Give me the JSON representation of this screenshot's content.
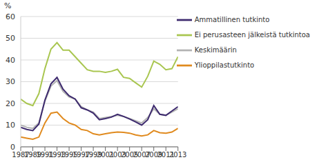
{
  "chart_data": {
    "type": "line",
    "y_label": "%",
    "legend": "top-right",
    "grid": true,
    "x": [
      1987,
      1988,
      1989,
      1990,
      1991,
      1992,
      1993,
      1994,
      1995,
      1996,
      1997,
      1998,
      1999,
      2000,
      2001,
      2002,
      2003,
      2004,
      2005,
      2006,
      2007,
      2008,
      2009,
      2010,
      2011,
      2012,
      2013
    ],
    "xlim": [
      1987,
      2013
    ],
    "xticks": [
      1987,
      1989,
      1991,
      1993,
      1995,
      1997,
      1999,
      2001,
      2003,
      2005,
      2007,
      2009,
      2011,
      2013
    ],
    "ylim": [
      0,
      60
    ],
    "yticks": [
      0,
      10,
      20,
      30,
      40,
      50,
      60
    ],
    "series": [
      {
        "name": "Ei perusasteen jälkeistä tutkintoa",
        "color": "#a9c650",
        "values": [
          22,
          20,
          19,
          24.5,
          36,
          45,
          48,
          44.5,
          44.5,
          41.5,
          38.5,
          35.5,
          34.8,
          34.8,
          34.3,
          34.8,
          35.7,
          32,
          31.5,
          29.5,
          27.5,
          32.5,
          39.5,
          38,
          35.5,
          36,
          41.5
        ]
      },
      {
        "name": "Keskimäärin",
        "color": "#b3b3b3",
        "values": [
          10,
          9,
          8.5,
          11,
          21,
          28,
          30.5,
          25.5,
          23,
          22,
          18.5,
          17,
          16,
          13,
          13.5,
          14,
          14.5,
          14,
          13,
          12,
          11,
          13.5,
          17.5,
          15,
          14.5,
          16,
          17.5
        ]
      },
      {
        "name": "Ammatillinen tutkinto",
        "color": "#3d2a6e",
        "values": [
          9,
          8,
          7.5,
          10.5,
          21.5,
          29,
          32,
          26.5,
          23.5,
          22,
          18,
          17,
          15.5,
          12.5,
          13,
          13.7,
          15,
          14,
          12.8,
          11.5,
          10,
          12.5,
          19,
          15,
          14.5,
          16.5,
          18.5
        ]
      },
      {
        "name": "Ylioppilastutkinto",
        "color": "#e08a1e",
        "values": [
          4.5,
          4,
          3.5,
          4.5,
          11,
          15.5,
          16,
          13,
          11,
          10,
          8,
          7.5,
          6,
          5.5,
          6,
          6.5,
          6.8,
          6.7,
          6.3,
          5.5,
          5,
          5.5,
          7.5,
          6.5,
          6.3,
          6.8,
          8.5
        ]
      }
    ]
  }
}
